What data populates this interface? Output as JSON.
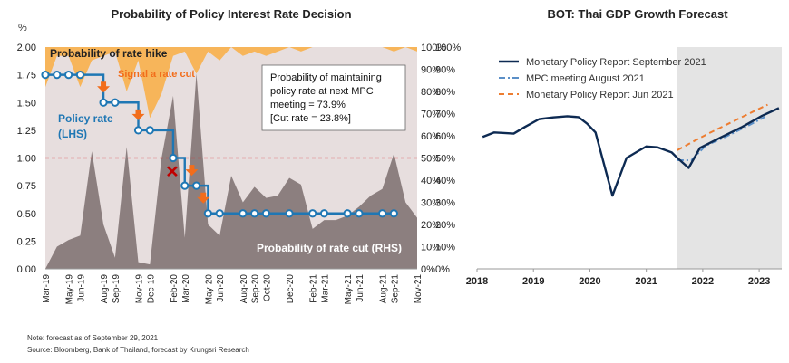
{
  "chart_data": [
    {
      "type": "line",
      "title": "Probability of Policy Interest Rate Decision",
      "ylabel_left": "%",
      "ylim_left": [
        0,
        2
      ],
      "yticks_left": [
        "0.00",
        "0.25",
        "0.50",
        "0.75",
        "1.00",
        "1.25",
        "1.50",
        "1.75",
        "2.00"
      ],
      "ylim_right": [
        0,
        1
      ],
      "yticks_right": [
        "0%",
        "10%",
        "20%",
        "30%",
        "40%",
        "50%",
        "60%",
        "70%",
        "80%",
        "90%",
        "100%"
      ],
      "categories": [
        "Mar-19",
        "Apr-19",
        "May-19",
        "Jun-19",
        "Jul-19",
        "Aug-19",
        "Sep-19",
        "Oct-19",
        "Nov-19",
        "Dec-19",
        "Jan-20",
        "Feb-20",
        "Mar-20",
        "Apr-20",
        "May-20",
        "Jun-20",
        "Jul-20",
        "Aug-20",
        "Sep-20",
        "Oct-20",
        "Nov-20",
        "Dec-20",
        "Jan-21",
        "Feb-21",
        "Mar-21",
        "Apr-21",
        "May-21",
        "Jun-21",
        "Jul-21",
        "Aug-21",
        "Sep-21",
        "Oct-21",
        "Nov-21"
      ],
      "x_tick_labels": [
        "Mar-19",
        "May-19",
        "Jun-19",
        "Aug-19",
        "Sep-19",
        "Nov-19",
        "Dec-19",
        "Feb-20",
        "Mar-20",
        "May-20",
        "Jun-20",
        "Aug-20",
        "Sep-20",
        "Oct-20",
        "Dec-20",
        "Feb-21",
        "Mar-21",
        "May-21",
        "Jun-21",
        "Aug-21",
        "Sep-21",
        "Nov-21"
      ],
      "series": [
        {
          "name": "Policy rate (LHS)",
          "color": "#1f77b4",
          "x": [
            "Mar-19",
            "Apr-19",
            "May-19",
            "Jun-19",
            "Aug-19",
            "Sep-19",
            "Nov-19",
            "Dec-19",
            "Feb-20",
            "Mar-20",
            "Apr-20",
            "May-20",
            "Jun-20",
            "Aug-20",
            "Sep-20",
            "Oct-20",
            "Dec-20",
            "Feb-21",
            "Mar-21",
            "May-21",
            "Jun-21",
            "Aug-21",
            "Sep-21"
          ],
          "values": [
            1.75,
            1.75,
            1.75,
            1.75,
            1.5,
            1.5,
            1.25,
            1.25,
            1.0,
            0.75,
            0.75,
            0.5,
            0.5,
            0.5,
            0.5,
            0.5,
            0.5,
            0.5,
            0.5,
            0.5,
            0.5,
            0.5,
            0.5
          ]
        },
        {
          "name": "Probability of rate cut (RHS)",
          "color": "#8c7f7f",
          "values": [
            0.0,
            0.1,
            0.13,
            0.15,
            0.53,
            0.2,
            0.05,
            0.55,
            0.03,
            0.02,
            0.5,
            0.78,
            0.14,
            0.88,
            0.2,
            0.15,
            0.42,
            0.3,
            0.37,
            0.32,
            0.33,
            0.41,
            0.38,
            0.18,
            0.22,
            0.22,
            0.24,
            0.28,
            0.33,
            0.36,
            0.52,
            0.3,
            0.23
          ]
        },
        {
          "name": "Probability of rate hike",
          "color": "#f7b55a",
          "values": [
            0.18,
            0.04,
            0.04,
            0.18,
            0.06,
            0.04,
            0.02,
            0.2,
            0.06,
            0.32,
            0.21,
            0.04,
            0.02,
            0.12,
            0.02,
            0.06,
            0.0,
            0.04,
            0.02,
            0.04,
            0.02,
            0.0,
            0.02,
            0.0,
            0.0,
            0.0,
            0.0,
            0.0,
            0.0,
            0.0,
            0.02,
            0.0,
            0.02
          ]
        }
      ],
      "reference_line": {
        "value": 1.0,
        "color": "#d62728",
        "style": "dashed"
      },
      "annotations": {
        "hike_label": "Probability  of rate hike",
        "signal_label": "Signal a rate cut",
        "policy_label_line1": "Policy rate",
        "policy_label_line2": "(LHS)",
        "cut_label": "Probability of rate cut (RHS)",
        "box_lines": [
          "Probability of maintaining",
          "policy rate at next MPC",
          "meeting = 73.9%",
          "[Cut rate = 23.8%]"
        ],
        "signal_arrows": [
          "Aug-19",
          "Nov-19",
          "Mar-20",
          "May-20"
        ],
        "x_mark": "Feb-20"
      },
      "colors": {
        "background": "#e7dede",
        "hike": "#f7b55a",
        "cut": "#8c7f7f",
        "line": "#1f77b4",
        "arrow": "#f26d1b",
        "x_mark": "#c00000"
      }
    },
    {
      "type": "line",
      "title": "BOT: Thai GDP Growth Forecast",
      "ylim": [
        0,
        1
      ],
      "yticks": [
        "0%",
        "10%",
        "20%",
        "30%",
        "40%",
        "50%",
        "60%",
        "70%",
        "80%",
        "90%",
        "100%"
      ],
      "xlim": [
        2018,
        2023.4
      ],
      "xticks": [
        "2018",
        "2019",
        "2020",
        "2021",
        "2022",
        "2023"
      ],
      "forecast_shading_start": 2021.55,
      "series": [
        {
          "name": "Monetary Policy Report September 2021",
          "color": "#0d2a52",
          "style": "solid",
          "x": [
            2018.1,
            2018.3,
            2018.45,
            2018.65,
            2018.85,
            2019.1,
            2019.35,
            2019.6,
            2019.8,
            2019.95,
            2020.1,
            2020.4,
            2020.65,
            2020.85,
            2021.0,
            2021.2,
            2021.45,
            2021.55,
            2021.75,
            2021.95,
            2022.3,
            2022.7,
            2023.05,
            2023.35
          ],
          "values": [
            0.595,
            0.615,
            0.613,
            0.61,
            0.64,
            0.675,
            0.683,
            0.688,
            0.684,
            0.655,
            0.615,
            0.33,
            0.5,
            0.53,
            0.552,
            0.548,
            0.525,
            0.5,
            0.455,
            0.545,
            0.59,
            0.64,
            0.69,
            0.725
          ]
        },
        {
          "name": "MPC meeting August 2021",
          "color": "#5b8fc7",
          "style": "dashdot",
          "x": [
            2021.55,
            2021.8,
            2022.05,
            2022.4,
            2022.8,
            2023.1
          ],
          "values": [
            0.49,
            0.49,
            0.555,
            0.595,
            0.645,
            0.685
          ]
        },
        {
          "name": "Monetary Policy Report Jun 2021",
          "color": "#ed7d31",
          "style": "dashed",
          "x": [
            2021.55,
            2021.8,
            2022.1,
            2022.5,
            2022.9,
            2023.15
          ],
          "values": [
            0.535,
            0.57,
            0.61,
            0.66,
            0.71,
            0.74
          ]
        }
      ]
    }
  ],
  "notes": {
    "line1": "Note: forecast as of September 29, 2021",
    "line2": "Source: Bloomberg, Bank of Thailand, forecast by Krungsri Research"
  }
}
